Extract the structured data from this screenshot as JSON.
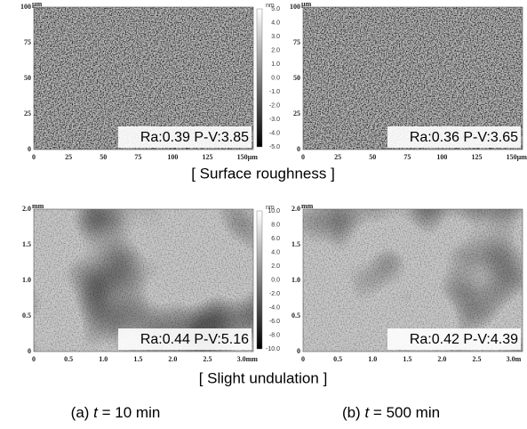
{
  "panels": [
    {
      "unit": "µm",
      "yticks": [
        "100",
        "75",
        "50",
        "25",
        "0"
      ],
      "xticks": [
        "0",
        "25",
        "50",
        "75",
        "100",
        "125",
        "150µm"
      ],
      "colorbar": {
        "unit": "nm",
        "ticks": [
          "5.0",
          "4.0",
          "3.0",
          "2.0",
          "1.0",
          "0.0",
          "-1.0",
          "-2.0",
          "-3.0",
          "-4.0",
          "-5.0"
        ]
      },
      "ra": "Ra:0.39",
      "pv": "P-V:3.85"
    },
    {
      "unit": "µm",
      "yticks": [
        "100",
        "75",
        "50",
        "25",
        "0"
      ],
      "xticks": [
        "0",
        "25",
        "50",
        "75",
        "100",
        "125",
        "150µm"
      ],
      "ra": "Ra:0.36",
      "pv": "P-V:3.65"
    },
    {
      "unit": "mm",
      "yticks": [
        "2.0",
        "1.5",
        "1.0",
        "0.5",
        "0"
      ],
      "xticks": [
        "0",
        "0.5",
        "1.0",
        "1.5",
        "2.0",
        "2.5",
        "3.0mm"
      ],
      "colorbar": {
        "unit": "nm",
        "ticks": [
          "10.0",
          "8.0",
          "6.0",
          "4.0",
          "2.0",
          "0.0",
          "-2.0",
          "-4.0",
          "-6.0",
          "-8.0",
          "-10.0"
        ]
      },
      "ra": "Ra:0.44",
      "pv": "P-V:5.16"
    },
    {
      "unit": "mm",
      "yticks": [
        "2.0",
        "1.5",
        "1.0",
        "0.5",
        "0"
      ],
      "xticks": [
        "0",
        "0.5",
        "1.0",
        "1.5",
        "2.0",
        "2.5",
        "3.0m"
      ],
      "ra": "Ra:0.42",
      "pv": "P-V:4.39"
    }
  ],
  "section_titles": [
    "[ Surface roughness ]",
    "[ Slight undulation ]"
  ],
  "captions": [
    {
      "label": "(a)",
      "variable": "t",
      "rest": "= 10 min"
    },
    {
      "label": "(b)",
      "variable": "t",
      "rest": "= 500 min"
    }
  ]
}
